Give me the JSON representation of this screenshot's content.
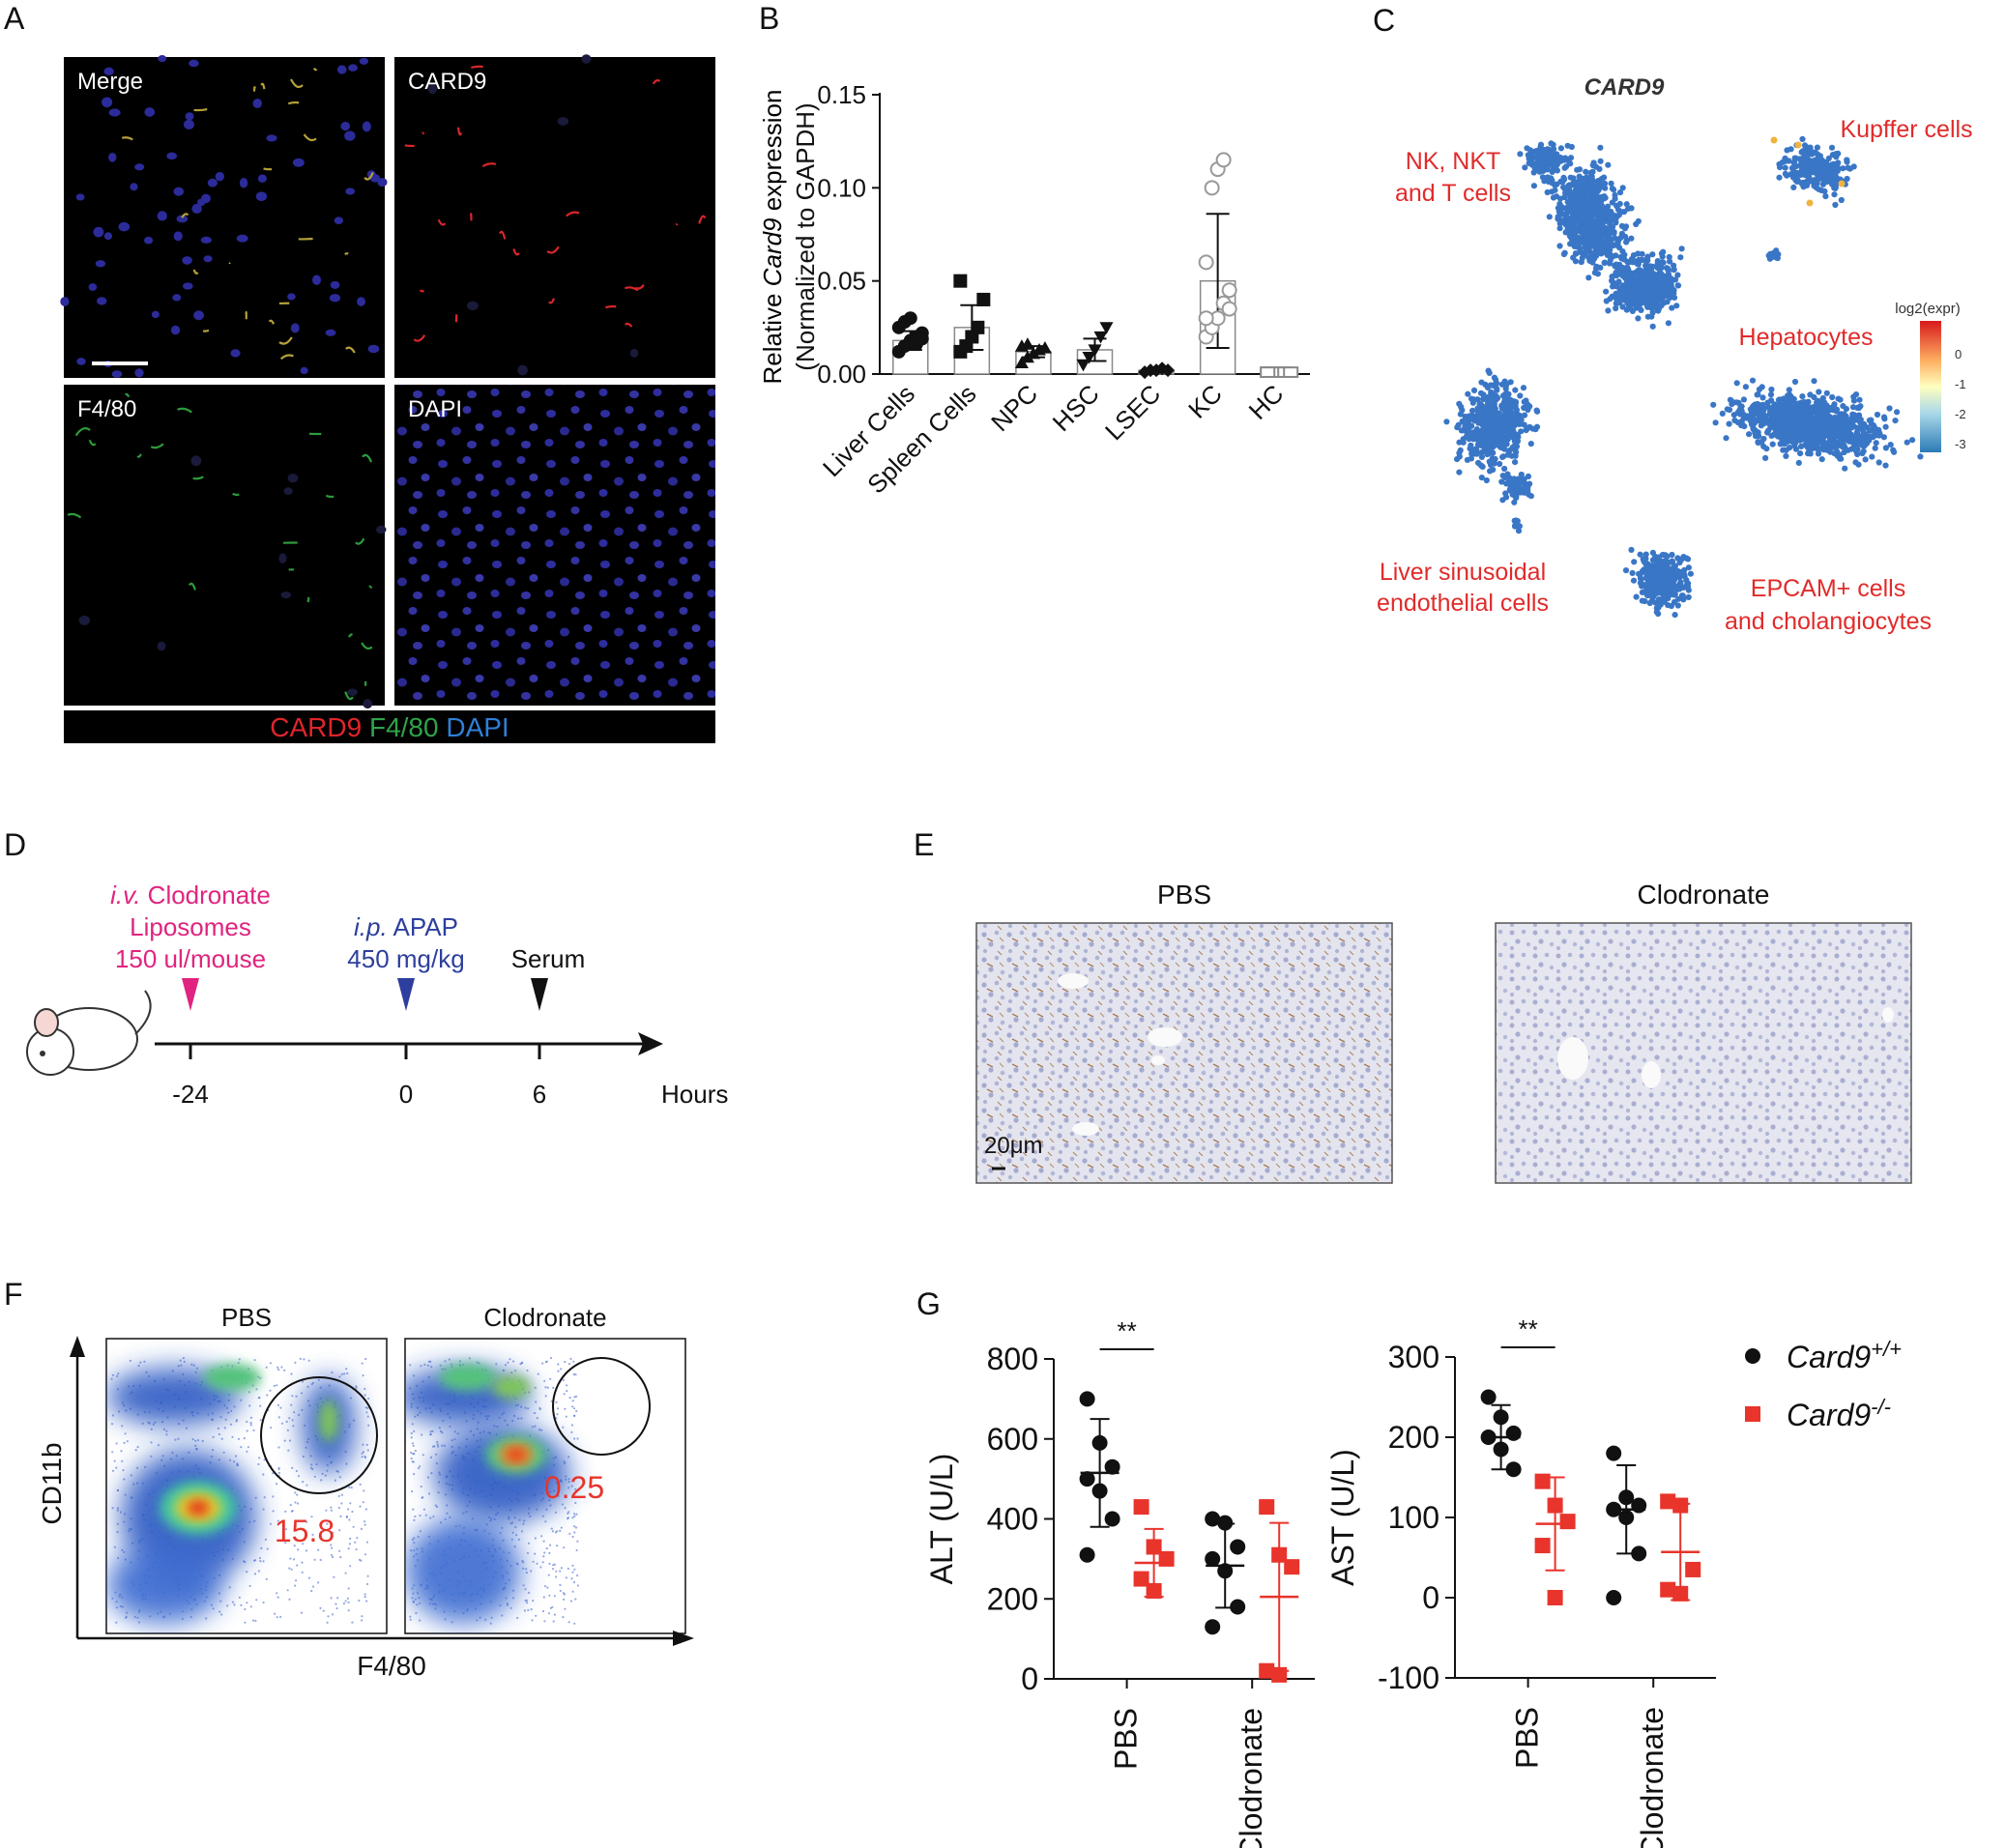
{
  "panels": {
    "A": {
      "letter": "A",
      "tiles": [
        "Merge",
        "CARD9",
        "F4/80",
        "DAPI"
      ],
      "legend": [
        {
          "text": "CARD9",
          "color": "#e0242b"
        },
        {
          "text": "F4/80",
          "color": "#2fa34a"
        },
        {
          "text": "DAPI",
          "color": "#2f7fd8"
        }
      ]
    },
    "B": {
      "letter": "B"
    },
    "C": {
      "letter": "C",
      "title": "CARD9",
      "clusters": [
        "NK, NKT",
        "and T cells",
        "Kupffer cells",
        "Hepatocytes",
        "Liver sinusoidal",
        "endothelial cells",
        "EPCAM+ cells",
        "and cholangiocytes"
      ],
      "colorbar_title": "log2(expr)",
      "colorbar_ticks": [
        "0",
        "-1",
        "-2",
        "-3"
      ]
    },
    "D": {
      "letter": "D",
      "steps": [
        {
          "line1_italic": "i.v.",
          "line1_rest": " Clodronate",
          "line2": "Liposomes",
          "line3": "150 ul/mouse",
          "color": "#e0247f"
        },
        {
          "line1_italic": "i.p.",
          "line1_rest": " APAP",
          "line2": "450 mg/kg",
          "line3": "",
          "color": "#2d3f9e"
        },
        {
          "line1_italic": "",
          "line1_rest": "Serum",
          "line2": "",
          "line3": "",
          "color": "#111111"
        }
      ],
      "ticks": [
        "-24",
        "0",
        "6"
      ],
      "axis_label": "Hours"
    },
    "E": {
      "letter": "E",
      "titles": [
        "PBS",
        "Clodronate"
      ],
      "scale_label": "20μm"
    },
    "F": {
      "letter": "F",
      "titles": [
        "PBS",
        "Clodronate"
      ],
      "gate_values": [
        "15.8",
        "0.25"
      ],
      "xlabel": "F4/80",
      "ylabel": "CD11b"
    },
    "G": {
      "letter": "G",
      "significance": "**",
      "legend": [
        {
          "base": "Card9",
          "sup": "+/+",
          "color": "#111111",
          "shape": "circle"
        },
        {
          "base": "Card9",
          "sup": "-/-",
          "color": "#e8342b",
          "shape": "square"
        }
      ]
    }
  },
  "chart_data": [
    {
      "type": "bar",
      "panel": "B",
      "ylabel_parts": [
        "Relative ",
        "Card9",
        " expression"
      ],
      "ylabel_line2": "(Normalized to GAPDH)",
      "categories": [
        "Liver Cells",
        "Spleen Cells",
        "NPC",
        "HSC",
        "LSEC",
        "KC",
        "HC"
      ],
      "values": [
        0.018,
        0.025,
        0.012,
        0.013,
        0.002,
        0.05,
        0.001
      ],
      "sd": [
        0.005,
        0.012,
        0.003,
        0.006,
        0.001,
        0.036,
        0.0005
      ],
      "points": [
        [
          0.012,
          0.015,
          0.018,
          0.02,
          0.022,
          0.025,
          0.028,
          0.03,
          0.016,
          0.019
        ],
        [
          0.012,
          0.015,
          0.02,
          0.025,
          0.04,
          0.05
        ],
        [
          0.006,
          0.009,
          0.011,
          0.013,
          0.014,
          0.015,
          0.016
        ],
        [
          0.005,
          0.009,
          0.013,
          0.02,
          0.025
        ],
        [
          0.001,
          0.002,
          0.002,
          0.003,
          0.002
        ],
        [
          0.02,
          0.025,
          0.03,
          0.038,
          0.045,
          0.06,
          0.1,
          0.11,
          0.115,
          0.035,
          0.03
        ],
        [
          0.001,
          0.001,
          0.001,
          0.001,
          0.001,
          0.001
        ]
      ],
      "markers": [
        "circle",
        "square",
        "triangle-up",
        "triangle-down",
        "diamond",
        "circle-open",
        "square-gray"
      ],
      "yticks": [
        "0.00",
        "0.05",
        "0.10",
        "0.15"
      ],
      "ylim": [
        0,
        0.15
      ]
    },
    {
      "type": "scatter",
      "panel": "G-ALT",
      "ylabel": "ALT (U/L)",
      "categories": [
        "PBS",
        "Clodronate"
      ],
      "ylim": [
        0,
        800
      ],
      "yticks": [
        "0",
        "200",
        "400",
        "600",
        "800"
      ],
      "series": [
        {
          "name": "Card9+/+",
          "color": "#111111",
          "shape": "circle",
          "points": [
            [
              700,
              590,
              530,
              500,
              470,
              400,
              310
            ],
            [
              400,
              390,
              330,
              300,
              270,
              180,
              130
            ]
          ],
          "mean": [
            515,
            283
          ],
          "sd": [
            135,
            105
          ]
        },
        {
          "name": "Card9-/-",
          "color": "#e8342b",
          "shape": "square",
          "points": [
            [
              430,
              330,
              300,
              250,
              220
            ],
            [
              430,
              310,
              280,
              20,
              10
            ]
          ],
          "mean": [
            290,
            205
          ],
          "sd": [
            85,
            185
          ]
        }
      ]
    },
    {
      "type": "scatter",
      "panel": "G-AST",
      "ylabel": "AST (U/L)",
      "categories": [
        "PBS",
        "Clodronate"
      ],
      "ylim": [
        -100,
        300
      ],
      "yticks": [
        "-100",
        "0",
        "100",
        "200",
        "300"
      ],
      "series": [
        {
          "name": "Card9+/+",
          "color": "#111111",
          "shape": "circle",
          "points": [
            [
              250,
              225,
              205,
              200,
              185,
              160
            ],
            [
              180,
              125,
              115,
              110,
              100,
              55,
              0
            ]
          ],
          "mean": [
            200,
            110
          ],
          "sd": [
            40,
            55
          ]
        },
        {
          "name": "Card9-/-",
          "color": "#e8342b",
          "shape": "square",
          "points": [
            [
              145,
              115,
              95,
              65,
              0
            ],
            [
              120,
              115,
              35,
              10,
              5
            ]
          ],
          "mean": [
            92,
            57
          ],
          "sd": [
            58,
            60
          ]
        }
      ]
    }
  ]
}
